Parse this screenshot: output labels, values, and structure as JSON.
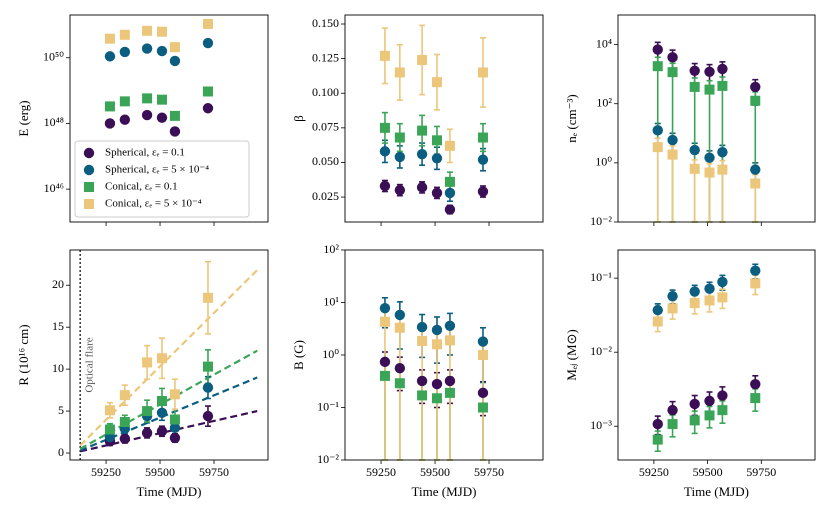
{
  "chart_data": [
    {
      "type": "scatter",
      "ylabel": "E (erg)",
      "yscale": "log",
      "xlim": [
        59083,
        60000
      ],
      "xticks": [
        59250,
        59500,
        59750
      ],
      "show_xticklabels": false,
      "ylim": [
        1e+45,
        2e+51
      ],
      "yticks": [
        {
          "value": 1e+46,
          "label": "10⁴⁶"
        },
        {
          "value": 1e+48,
          "label": "10⁴⁸"
        },
        {
          "value": 1e+50,
          "label": "10⁵⁰"
        }
      ],
      "legend": "lower left",
      "x": [
        59268,
        59337,
        59440,
        59509,
        59569,
        59722
      ],
      "series": [
        {
          "name": "Spherical, εₑ = 0.1",
          "color": "#3b0f55",
          "marker": "circle",
          "values": [
            1e+48,
            1.3e+48,
            1.8e+48,
            1.5e+48,
            5.7e+47,
            2.9e+48
          ]
        },
        {
          "name": "Spherical, εₑ = 5 × 10⁻⁴",
          "color": "#0b5e80",
          "marker": "circle",
          "values": [
            1.1e+50,
            1.5e+50,
            1.9e+50,
            1.6e+50,
            8e+49,
            2.8e+50
          ]
        },
        {
          "name": "Conical, εₑ = 0.1",
          "color": "#3ba557",
          "marker": "square",
          "values": [
            3.3e+48,
            4.7e+48,
            5.8e+48,
            5.3e+48,
            1.7e+48,
            9.4e+48
          ]
        },
        {
          "name": "Conical, εₑ = 5 × 10⁻⁴",
          "color": "#ecc67a",
          "marker": "square",
          "values": [
            3.8e+50,
            5e+50,
            6.6e+50,
            6.2e+50,
            2.1e+50,
            1.07e+51
          ]
        }
      ]
    },
    {
      "type": "scatter",
      "ylabel": "β",
      "yscale": "linear",
      "xlim": [
        59083,
        60000
      ],
      "xticks": [
        59250,
        59500,
        59750
      ],
      "show_xticklabels": false,
      "ylim": [
        0.007,
        0.1565
      ],
      "yticks": [
        0.025,
        {
          "value": 0.05,
          "label": "0.050"
        },
        0.075,
        {
          "value": 0.1,
          "label": "0.100"
        },
        0.125,
        {
          "value": 0.15,
          "label": "0.150"
        }
      ],
      "x": [
        59268,
        59337,
        59440,
        59509,
        59569,
        59722
      ],
      "series": [
        {
          "color": "#3b0f55",
          "marker": "circle",
          "values": [
            0.033,
            0.03,
            0.032,
            0.028,
            0.016,
            0.029
          ],
          "errors": [
            0.004,
            0.004,
            0.004,
            0.004,
            0.003,
            0.004
          ]
        },
        {
          "color": "#0b5e80",
          "marker": "circle",
          "values": [
            0.058,
            0.054,
            0.056,
            0.053,
            0.028,
            0.052
          ],
          "errors": [
            0.008,
            0.008,
            0.008,
            0.008,
            0.006,
            0.008
          ]
        },
        {
          "color": "#3ba557",
          "marker": "square",
          "values": [
            0.075,
            0.068,
            0.073,
            0.066,
            0.036,
            0.068
          ],
          "errors": [
            0.011,
            0.01,
            0.011,
            0.01,
            0.007,
            0.01
          ]
        },
        {
          "color": "#ecc67a",
          "marker": "square",
          "values": [
            0.127,
            0.115,
            0.124,
            0.108,
            0.062,
            0.115
          ],
          "errors": [
            0.02,
            0.02,
            0.025,
            0.02,
            0.012,
            0.025
          ]
        }
      ]
    },
    {
      "type": "scatter",
      "ylabel": "nₑ (cm⁻³)",
      "yscale": "log",
      "xlim": [
        59083,
        60000
      ],
      "xticks": [
        59250,
        59500,
        59750
      ],
      "show_xticklabels": false,
      "ylim": [
        0.01,
        100000.0
      ],
      "yticks": [
        {
          "value": 0.01,
          "label": "10⁻²"
        },
        {
          "value": 1,
          "label": "10⁰"
        },
        {
          "value": 100,
          "label": "10²"
        },
        {
          "value": 10000,
          "label": "10⁴"
        }
      ],
      "x": [
        59268,
        59337,
        59440,
        59509,
        59569,
        59722
      ],
      "series": [
        {
          "color": "#3b0f55",
          "marker": "circle",
          "values": [
            6800,
            3700,
            1300,
            1200,
            1500,
            370
          ],
          "errors": [
            5100,
            2800,
            980,
            900,
            1100,
            280
          ]
        },
        {
          "color": "#0b5e80",
          "marker": "circle",
          "values": [
            12.6,
            5.9,
            2.7,
            1.5,
            2.3,
            0.59
          ],
          "errors": [
            8.8,
            4.1,
            1.9,
            1.05,
            1.6,
            0.41
          ]
        },
        {
          "color": "#3ba557",
          "marker": "square",
          "values": [
            1860,
            1170,
            370,
            300,
            400,
            126
          ],
          "errors": [
            1860,
            1170,
            370,
            300,
            400,
            126
          ]
        },
        {
          "color": "#ecc67a",
          "marker": "square",
          "values": [
            3.4,
            1.9,
            0.63,
            0.47,
            0.59,
            0.2
          ],
          "errors": [
            3.4,
            1.9,
            0.63,
            0.47,
            0.59,
            0.2
          ]
        }
      ]
    },
    {
      "type": "scatter",
      "ylabel": "R (10¹⁶ cm)",
      "xlabel": "Time (MJD)",
      "yscale": "linear",
      "xlim": [
        59083,
        60000
      ],
      "xticks": [
        59250,
        59500,
        59750
      ],
      "ylim": [
        -0.83,
        24.2
      ],
      "yticks": [
        0,
        5,
        10,
        15,
        20
      ],
      "annotation": {
        "text": "Optical flare",
        "x": 59130
      },
      "fit_x": [
        59130,
        59950
      ],
      "x": [
        59268,
        59337,
        59440,
        59509,
        59569,
        59722
      ],
      "series": [
        {
          "color": "#3b0f55",
          "marker": "circle",
          "values": [
            1.4,
            1.7,
            2.4,
            2.6,
            1.8,
            4.4
          ],
          "errors": [
            0.5,
            0.5,
            0.6,
            0.6,
            0.5,
            1.2
          ],
          "fit": [
            0.2,
            5.0
          ]
        },
        {
          "color": "#0b5e80",
          "marker": "circle",
          "values": [
            1.9,
            2.9,
            4.4,
            4.8,
            3.0,
            7.8
          ],
          "errors": [
            0.5,
            0.6,
            0.8,
            0.9,
            0.8,
            1.3
          ],
          "fit": [
            0.3,
            9.0
          ]
        },
        {
          "color": "#3ba557",
          "marker": "square",
          "values": [
            2.8,
            3.7,
            5.0,
            6.2,
            4.0,
            10.3
          ],
          "errors": [
            0.7,
            0.8,
            1.3,
            1.5,
            1.2,
            2.0
          ],
          "fit": [
            0.5,
            12.2
          ]
        },
        {
          "color": "#ecc67a",
          "marker": "square",
          "values": [
            5.1,
            6.9,
            10.8,
            11.3,
            7.0,
            18.5
          ],
          "errors": [
            0.9,
            1.2,
            2.0,
            2.4,
            1.8,
            4.3
          ],
          "fit": [
            0.9,
            21.8
          ]
        }
      ]
    },
    {
      "type": "scatter",
      "ylabel": "B (G)",
      "xlabel": "Time (MJD)",
      "yscale": "log",
      "xlim": [
        59083,
        60000
      ],
      "xticks": [
        59250,
        59500,
        59750
      ],
      "ylim": [
        0.01,
        100
      ],
      "yticks": [
        {
          "value": 0.01,
          "label": "10⁻²"
        },
        {
          "value": 0.1,
          "label": "10⁻¹"
        },
        {
          "value": 1,
          "label": "10⁰"
        },
        {
          "value": 10,
          "label": "10¹"
        },
        {
          "value": 100,
          "label": "10²"
        }
      ],
      "x": [
        59268,
        59337,
        59440,
        59509,
        59569,
        59722
      ],
      "series": [
        {
          "color": "#3b0f55",
          "marker": "circle",
          "values": [
            0.74,
            0.56,
            0.32,
            0.28,
            0.32,
            0.19
          ],
          "errors": [
            0.4,
            0.35,
            0.2,
            0.18,
            0.2,
            0.12
          ]
        },
        {
          "color": "#0b5e80",
          "marker": "circle",
          "values": [
            7.8,
            5.8,
            3.4,
            3.0,
            3.6,
            1.8
          ],
          "errors": [
            4.5,
            4.5,
            2.5,
            2.3,
            2.6,
            1.5
          ]
        },
        {
          "color": "#3ba557",
          "marker": "square",
          "values": [
            0.4,
            0.29,
            0.17,
            0.15,
            0.19,
            0.1
          ],
          "errors": [
            0.39,
            0.28,
            0.17,
            0.15,
            0.19,
            0.1
          ]
        },
        {
          "color": "#ecc67a",
          "marker": "square",
          "values": [
            4.3,
            3.3,
            1.85,
            1.6,
            1.9,
            1.0
          ],
          "errors": [
            4.3,
            3.3,
            1.85,
            1.6,
            1.9,
            1.0
          ]
        }
      ]
    },
    {
      "type": "scatter",
      "ylabel": "Mₑⱼ (M⊙)",
      "xlabel": "Time (MJD)",
      "yscale": "log",
      "xlim": [
        59083,
        60000
      ],
      "xticks": [
        59250,
        59500,
        59750
      ],
      "ylim": [
        0.00035,
        0.24
      ],
      "yticks": [
        {
          "value": 0.001,
          "label": "10⁻³"
        },
        {
          "value": 0.01,
          "label": "10⁻²"
        },
        {
          "value": 0.1,
          "label": "10⁻¹"
        }
      ],
      "x": [
        59268,
        59337,
        59440,
        59509,
        59569,
        59722
      ],
      "series": [
        {
          "color": "#3b0f55",
          "marker": "circle",
          "values": [
            0.00107,
            0.00165,
            0.002,
            0.0022,
            0.0026,
            0.0037
          ],
          "errors": [
            0.0003,
            0.0005,
            0.0006,
            0.0007,
            0.0008,
            0.0011
          ]
        },
        {
          "color": "#0b5e80",
          "marker": "circle",
          "values": [
            0.037,
            0.057,
            0.066,
            0.072,
            0.089,
            0.126
          ],
          "errors": [
            0.008,
            0.012,
            0.014,
            0.016,
            0.02,
            0.028
          ]
        },
        {
          "color": "#3ba557",
          "marker": "square",
          "values": [
            0.00066,
            0.00107,
            0.0012,
            0.0014,
            0.00165,
            0.0024
          ],
          "errors": [
            0.0002,
            0.00035,
            0.0004,
            0.00045,
            0.00055,
            0.0008
          ]
        },
        {
          "color": "#ecc67a",
          "marker": "square",
          "values": [
            0.026,
            0.039,
            0.046,
            0.05,
            0.055,
            0.085
          ],
          "errors": [
            0.007,
            0.011,
            0.013,
            0.015,
            0.016,
            0.025
          ]
        }
      ]
    }
  ]
}
